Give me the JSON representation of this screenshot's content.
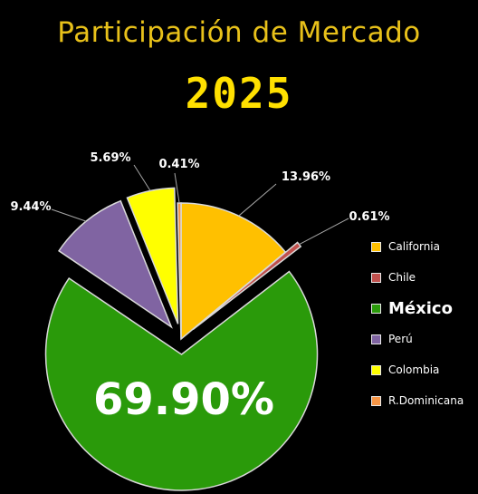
{
  "chart_data": {
    "type": "pie",
    "title": "Participación de Mercado",
    "subtitle": "2025",
    "slices": [
      {
        "label": "California",
        "value": 13.96,
        "display": "13.96%",
        "color": "#ffc000",
        "exploded": false,
        "highlight": false
      },
      {
        "label": "Chile",
        "value": 0.61,
        "display": "0.61%",
        "color": "#c0504d",
        "exploded": true,
        "highlight": false
      },
      {
        "label": "México",
        "value": 69.9,
        "display": "69.90%",
        "color": "#2a9a0a",
        "exploded": true,
        "highlight": true
      },
      {
        "label": "Perú",
        "value": 9.44,
        "display": "9.44%",
        "color": "#8064a2",
        "exploded": true,
        "highlight": false
      },
      {
        "label": "Colombia",
        "value": 5.69,
        "display": "5.69%",
        "color": "#ffff00",
        "exploded": true,
        "highlight": false
      },
      {
        "label": "R.Dominicana",
        "value": 0.41,
        "display": "0.41%",
        "color": "#f79646",
        "exploded": false,
        "highlight": false
      }
    ],
    "legend_position": "right",
    "slice_border_color": "#d9d9d9",
    "background": "#000000",
    "title_color": "#e8c11a",
    "subtitle_color": "#ffe000"
  }
}
